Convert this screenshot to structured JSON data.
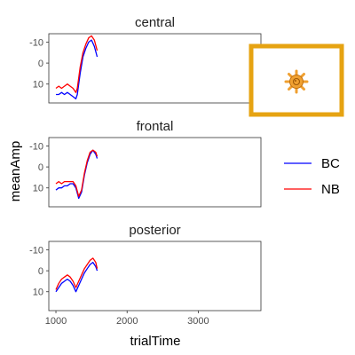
{
  "chart_data": {
    "type": "line",
    "xlabel": "trialTime",
    "ylabel": "meanAmp",
    "x_ticks": [
      1000,
      2000,
      3000
    ],
    "xlim": [
      900,
      3880
    ],
    "y_ticks": [
      -10,
      0,
      10
    ],
    "ylim": [
      -14,
      19
    ],
    "y_reversed": true,
    "grid": false,
    "legend_position": "right",
    "legend": [
      {
        "name": "BC",
        "color": "#0000ff"
      },
      {
        "name": "NB",
        "color": "#ff0000"
      }
    ],
    "panels": [
      {
        "title": "central",
        "series": [
          {
            "name": "BC",
            "color": "#0000ff",
            "x": [
              1000,
              1040,
              1080,
              1120,
              1160,
              1200,
              1240,
              1280,
              1300,
              1340,
              1380,
              1420,
              1460,
              1500,
              1540,
              1580
            ],
            "y": [
              15,
              15,
              14,
              15,
              14,
              15,
              16,
              17,
              15,
              5,
              -3,
              -7,
              -10,
              -11,
              -8,
              -3
            ]
          },
          {
            "name": "NB",
            "color": "#ff0000",
            "x": [
              1000,
              1040,
              1080,
              1120,
              1160,
              1200,
              1240,
              1280,
              1300,
              1340,
              1380,
              1420,
              1460,
              1500,
              1540,
              1580
            ],
            "y": [
              12,
              11,
              12,
              11,
              10,
              11,
              12,
              14,
              12,
              2,
              -5,
              -9,
              -12,
              -13,
              -11,
              -6
            ]
          }
        ]
      },
      {
        "title": "frontal",
        "series": [
          {
            "name": "BC",
            "color": "#0000ff",
            "x": [
              1000,
              1040,
              1080,
              1120,
              1160,
              1200,
              1240,
              1280,
              1320,
              1360,
              1400,
              1440,
              1480,
              1520,
              1560,
              1580
            ],
            "y": [
              11,
              10,
              10,
              9,
              9,
              8,
              8,
              10,
              15,
              12,
              4,
              -2,
              -6,
              -8,
              -6,
              -4
            ]
          },
          {
            "name": "NB",
            "color": "#ff0000",
            "x": [
              1000,
              1040,
              1080,
              1120,
              1160,
              1200,
              1240,
              1280,
              1320,
              1360,
              1400,
              1440,
              1480,
              1520,
              1560,
              1580
            ],
            "y": [
              8,
              7,
              8,
              7,
              7,
              7,
              7,
              9,
              14,
              11,
              3,
              -3,
              -7,
              -8,
              -7,
              -5
            ]
          }
        ]
      },
      {
        "title": "posterior",
        "series": [
          {
            "name": "BC",
            "color": "#0000ff",
            "x": [
              1000,
              1040,
              1080,
              1120,
              1160,
              1200,
              1240,
              1280,
              1320,
              1360,
              1400,
              1440,
              1480,
              1520,
              1560,
              1580
            ],
            "y": [
              10,
              8,
              6,
              5,
              4,
              5,
              7,
              10,
              7,
              4,
              1,
              -1,
              -3,
              -4,
              -2,
              0
            ]
          },
          {
            "name": "NB",
            "color": "#ff0000",
            "x": [
              1000,
              1040,
              1080,
              1120,
              1160,
              1200,
              1240,
              1280,
              1320,
              1360,
              1400,
              1440,
              1480,
              1520,
              1560,
              1580
            ],
            "y": [
              9,
              6,
              4,
              3,
              2,
              3,
              5,
              8,
              5,
              2,
              -1,
              -3,
              -5,
              -6,
              -4,
              -1
            ]
          }
        ]
      }
    ]
  },
  "overlay": {
    "frame_color": "#e6a312",
    "icon": "sun-icon",
    "icon_color": "#f0a030"
  }
}
